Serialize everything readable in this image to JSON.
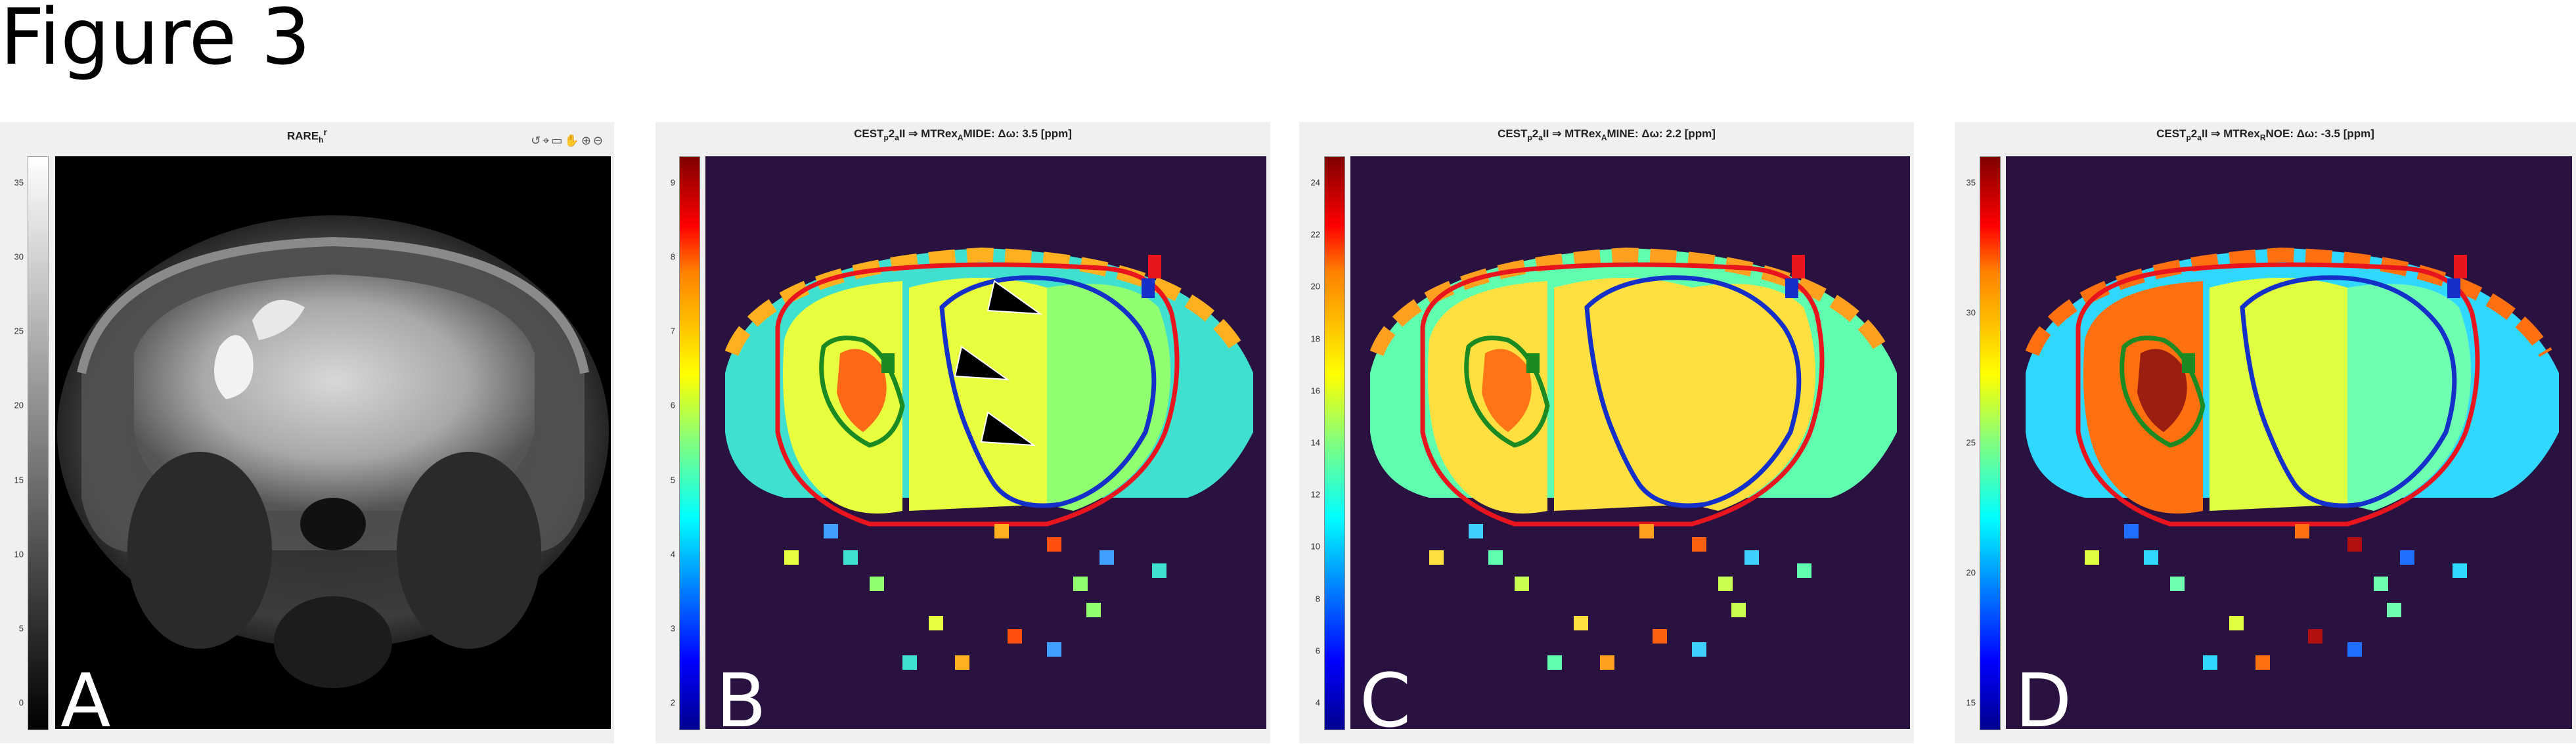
{
  "figure_title": "Figure 3",
  "toolbar_icons": [
    "rotate-icon",
    "data-tip-icon",
    "brush-icon",
    "pan-icon",
    "zoom-in-icon",
    "zoom-out-icon"
  ],
  "panels": [
    {
      "letter": "A",
      "title_main": "RARE",
      "title_sub": "h",
      "title_rest": "r",
      "colormap": "gray",
      "ticks": [
        "35",
        "30",
        "25",
        "20",
        "15",
        "10",
        "5",
        "0"
      ]
    },
    {
      "letter": "B",
      "title_main": "CEST",
      "title_sub": "p",
      "title_mid": "2",
      "title_sub2": "a",
      "title_rest": "II  ⇒  MTRex",
      "title_sub3": "A",
      "title_tail": "MIDE:   Δω: 3.5  [ppm]",
      "colormap": "jet",
      "ticks": [
        "9",
        "8",
        "7",
        "6",
        "5",
        "4",
        "3",
        "2"
      ]
    },
    {
      "letter": "C",
      "title_main": "CEST",
      "title_sub": "p",
      "title_mid": "2",
      "title_sub2": "a",
      "title_rest": "II  ⇒  MTRex",
      "title_sub3": "A",
      "title_tail": "MINE:   Δω: 2.2  [ppm]",
      "colormap": "jet",
      "ticks": [
        "24",
        "22",
        "20",
        "18",
        "16",
        "14",
        "12",
        "10",
        "8",
        "6",
        "4"
      ]
    },
    {
      "letter": "D",
      "title_main": "CEST",
      "title_sub": "p",
      "title_mid": "2",
      "title_sub2": "a",
      "title_rest": "II  ⇒  MTRex",
      "title_sub3": "R",
      "title_tail": "NOE:   Δω: -3.5  [ppm]",
      "colormap": "jet",
      "ticks": [
        "35",
        "30",
        "25",
        "20",
        "15"
      ]
    }
  ],
  "colors": {
    "roi_red": "#e8141e",
    "roi_blue": "#1530c8",
    "roi_green": "#1c8a22",
    "background": "#2a1240"
  }
}
